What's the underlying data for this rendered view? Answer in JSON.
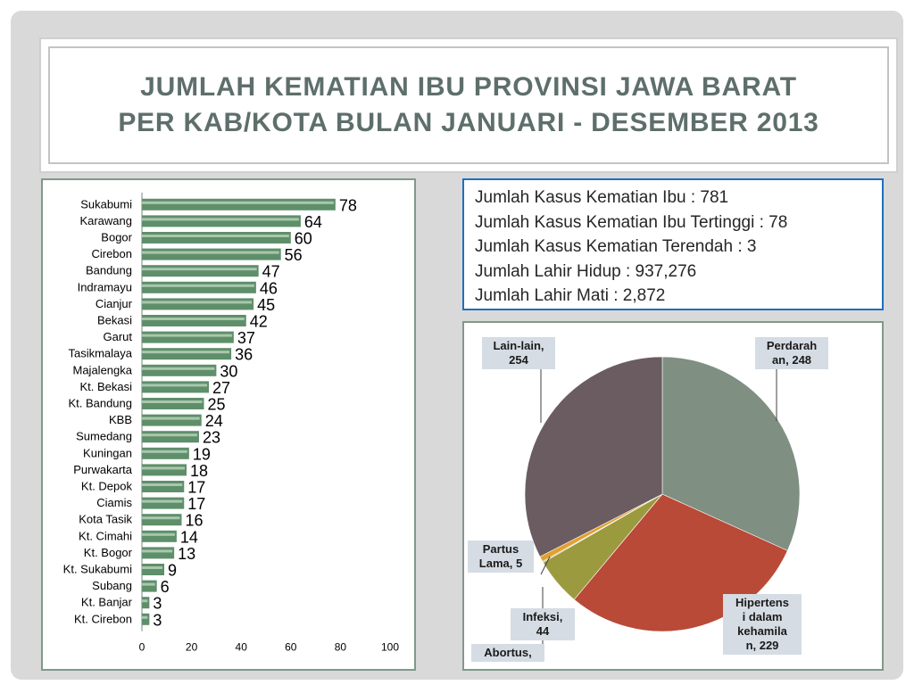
{
  "title": {
    "line1": "JUMLAH KEMATIAN IBU PROVINSI JAWA BARAT",
    "line2": "PER KAB/KOTA BULAN JANUARI - DESEMBER 2013"
  },
  "stats": [
    "Jumlah Kasus Kematian Ibu : 781",
    "Jumlah Kasus Kematian Ibu Tertinggi : 78",
    "Jumlah Kasus Kematian Terendah : 3",
    "Jumlah Lahir Hidup : 937,276",
    "Jumlah Lahir Mati : 2,872"
  ],
  "colors": {
    "bar": "#5e8f6a",
    "title": "#5e6f6b",
    "stats_border": "#1f6fbf",
    "panel_border": "#80998a"
  },
  "chart_data": [
    {
      "type": "bar",
      "orientation": "horizontal",
      "categories": [
        "Sukabumi",
        "Karawang",
        "Bogor",
        "Cirebon",
        "Bandung",
        "Indramayu",
        "Cianjur",
        "Bekasi",
        "Garut",
        "Tasikmalaya",
        "Majalengka",
        "Kt. Bekasi",
        "Kt. Bandung",
        "KBB",
        "Sumedang",
        "Kuningan",
        "Purwakarta",
        "Kt. Depok",
        "Ciamis",
        "Kota Tasik",
        "Kt. Cimahi",
        "Kt. Bogor",
        "Kt. Sukabumi",
        "Subang",
        "Kt. Banjar",
        "Kt. Cirebon"
      ],
      "values": [
        78,
        64,
        60,
        56,
        47,
        46,
        45,
        42,
        37,
        36,
        30,
        27,
        25,
        24,
        23,
        19,
        18,
        17,
        17,
        16,
        14,
        13,
        9,
        6,
        3,
        3
      ],
      "xlim": [
        0,
        100
      ],
      "xticks": [
        "0",
        "20",
        "40",
        "60",
        "80",
        "100"
      ],
      "grid": false,
      "legend": false
    },
    {
      "type": "pie",
      "slices": [
        {
          "label": "Perdarahan, 248",
          "value": 248,
          "color": "#7f8f82"
        },
        {
          "label": "Hipertensi dalam kehamilan, 229",
          "value": 229,
          "color": "#b84a37"
        },
        {
          "label": "Infeksi, 44",
          "value": 44,
          "color": "#9c9a3f"
        },
        {
          "label": "Abortus,",
          "value": 1,
          "color": "#c9a26a"
        },
        {
          "label": "Partus Lama, 5",
          "value": 5,
          "color": "#e0a12e"
        },
        {
          "label": "Lain-lain, 254",
          "value": 254,
          "color": "#6a5c61"
        }
      ],
      "labels_display": {
        "perdarahan": "Perdarah\nan, 248",
        "hipertensi": "Hipertens\ni dalam\nkehamila\nn, 229",
        "infeksi": "Infeksi,\n44",
        "abortus": "Abortus,",
        "partus": "Partus\nLama, 5",
        "lainlain": "Lain-lain,\n254"
      }
    }
  ]
}
